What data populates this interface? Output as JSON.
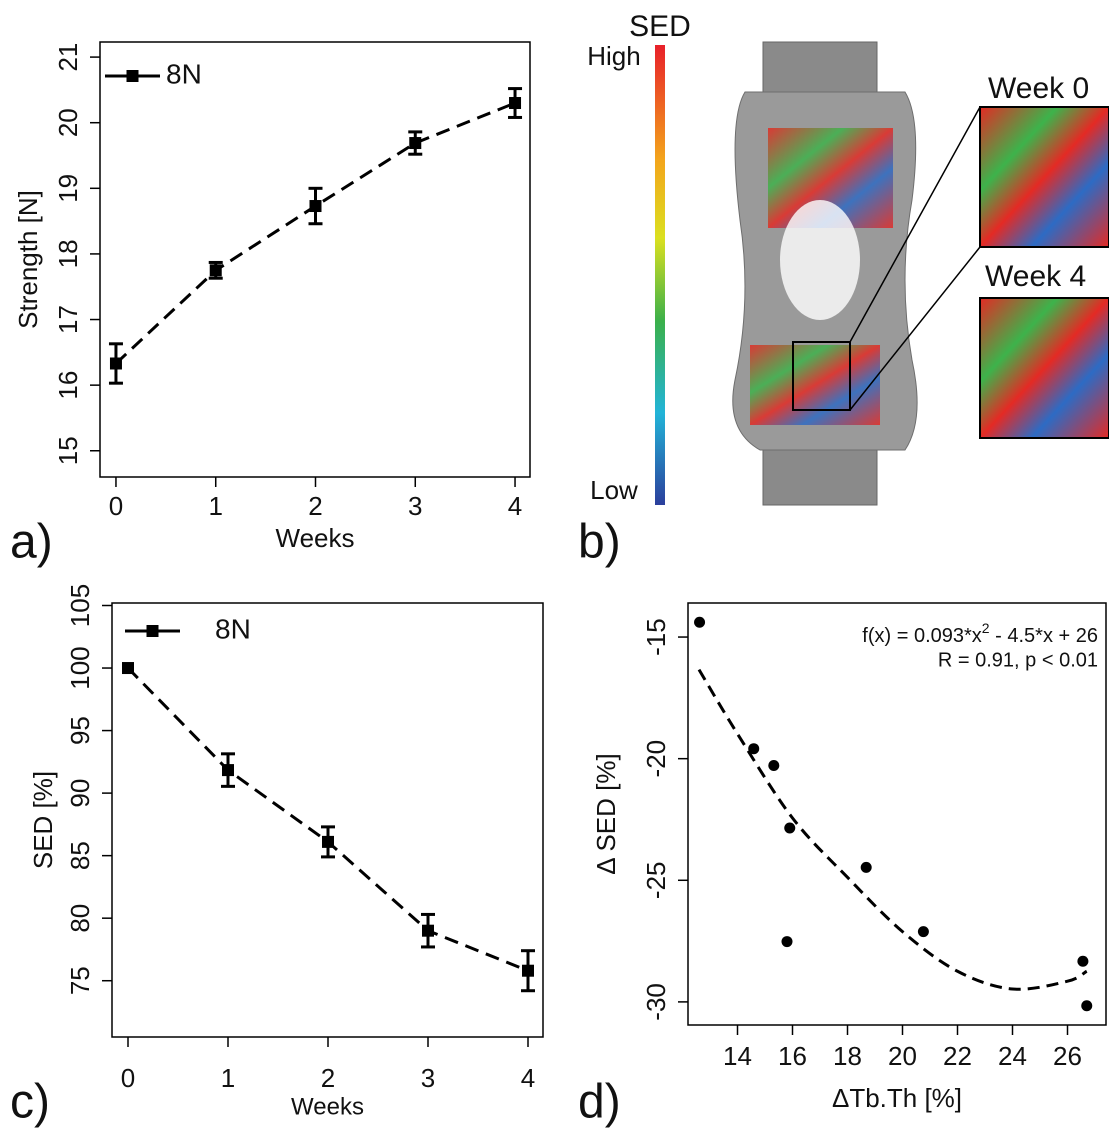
{
  "chart_data": [
    {
      "type": "line",
      "panel_label": "a)",
      "x_label": "Weeks",
      "y_label": "Strength [N]",
      "x": [
        0,
        1,
        2,
        3,
        4
      ],
      "xlim": [
        -0.16,
        4.15
      ],
      "xticks": [
        0,
        1,
        2,
        3,
        4
      ],
      "ylim": [
        14.6,
        21.23
      ],
      "yticks": [
        15,
        16,
        17,
        18,
        19,
        20,
        21
      ],
      "legend": "top-left",
      "series": [
        {
          "name": "8N",
          "color": "#000000",
          "values": [
            16.33,
            17.75,
            18.73,
            19.69,
            20.3
          ],
          "errors": [
            0.3,
            0.12,
            0.27,
            0.17,
            0.22
          ]
        }
      ]
    },
    {
      "type": "line",
      "panel_label": "c)",
      "x_label": "Weeks",
      "y_label": "SED [%]",
      "x": [
        0,
        1,
        2,
        3,
        4
      ],
      "xlim": [
        -0.16,
        4.15
      ],
      "xticks": [
        0,
        1,
        2,
        3,
        4
      ],
      "ylim": [
        70.5,
        105.2
      ],
      "yticks": [
        75,
        80,
        85,
        90,
        95,
        100,
        105
      ],
      "legend": "top-left",
      "series": [
        {
          "name": "8N",
          "color": "#000000",
          "values": [
            100,
            91.84,
            86.1,
            79.0,
            75.8
          ],
          "errors": [
            0,
            1.3,
            1.2,
            1.3,
            1.6
          ]
        }
      ]
    },
    {
      "type": "scatter",
      "panel_label": "d)",
      "x_label": "ΔTb.Th [%]",
      "y_label": "Δ SED [%]",
      "x": [
        12.62,
        14.59,
        15.32,
        15.9,
        15.8,
        18.68,
        20.76,
        26.56,
        26.7
      ],
      "values": [
        -14.39,
        -19.59,
        -20.28,
        -22.85,
        -27.52,
        -24.47,
        -27.11,
        -28.33,
        -30.16
      ],
      "color": "#000000",
      "fit": {
        "x": [
          12.6,
          14,
          16,
          18,
          20,
          22,
          24,
          26,
          26.7
        ],
        "values": [
          -16.34,
          -18.98,
          -22.44,
          -24.88,
          -27.11,
          -28.74,
          -29.47,
          -29.15,
          -28.74
        ]
      },
      "xlim": [
        12.2,
        27.4
      ],
      "xticks": [
        14,
        16,
        18,
        20,
        22,
        24,
        26
      ],
      "ylim": [
        -30.95,
        -13.6
      ],
      "yticks": [
        -15,
        -20,
        -25,
        -30
      ],
      "equation": {
        "lhs": "f(x) = 0.093*x",
        "power": "2",
        "rhs": " - 4.5*x + 26"
      },
      "stats": "R = 0.91, p < 0.01"
    }
  ],
  "image_panel": {
    "panel_label": "b)",
    "colorbar_title": "SED",
    "high": "High",
    "low": "Low",
    "insets": [
      "Week 0",
      "Week 4"
    ]
  }
}
